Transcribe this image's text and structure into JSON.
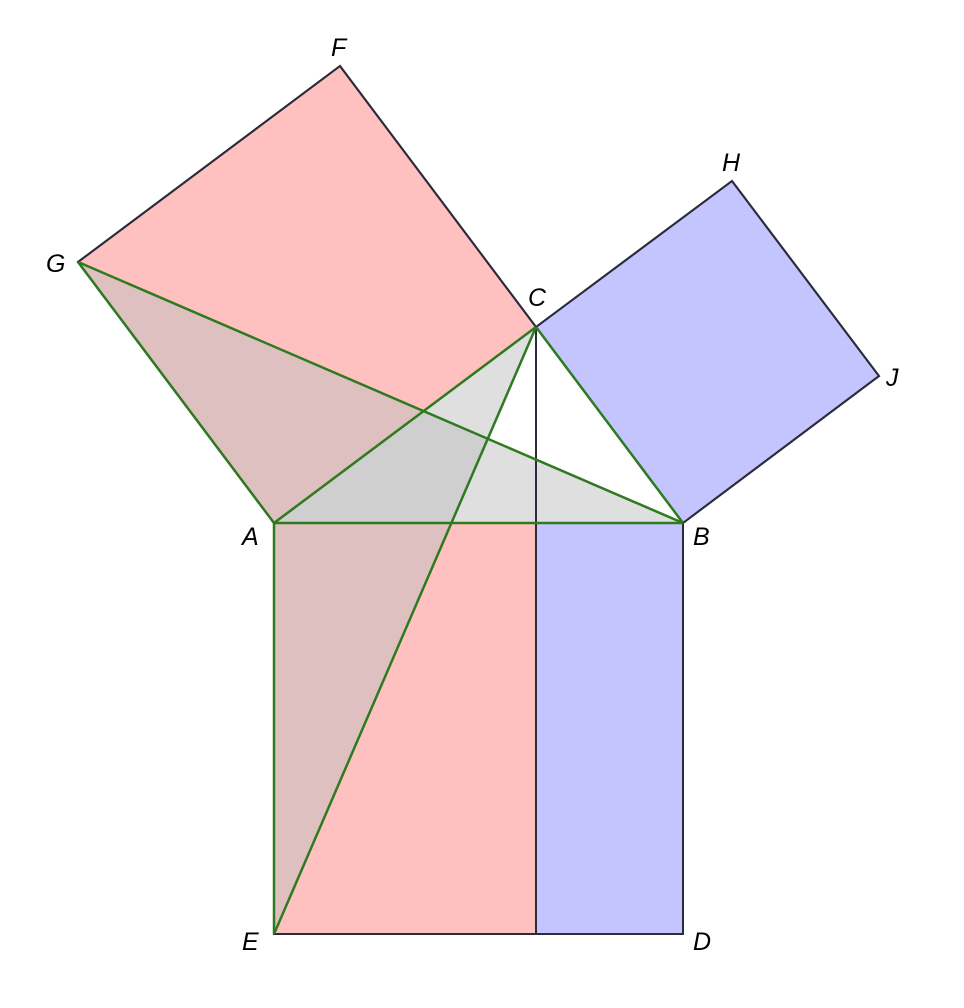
{
  "diagram": {
    "points": {
      "A": "A",
      "B": "B",
      "C": "C",
      "D": "D",
      "E": "E",
      "F": "F",
      "G": "G",
      "H": "H",
      "J": "J"
    },
    "colors": {
      "square_ac_fill": "#ffc0c0",
      "square_bc_fill": "#c4c4ff",
      "rect_ae_fill": "#ffc0c0",
      "rect_bd_fill": "#c4c4ff",
      "triangle_abc_fill": "#e0e0e0",
      "triangle_abg_fill": "#c0c0c0",
      "triangle_ace_fill": "#c0c0c0",
      "outline": "#2b2b3b",
      "construction_line": "#2d7a1f"
    }
  }
}
